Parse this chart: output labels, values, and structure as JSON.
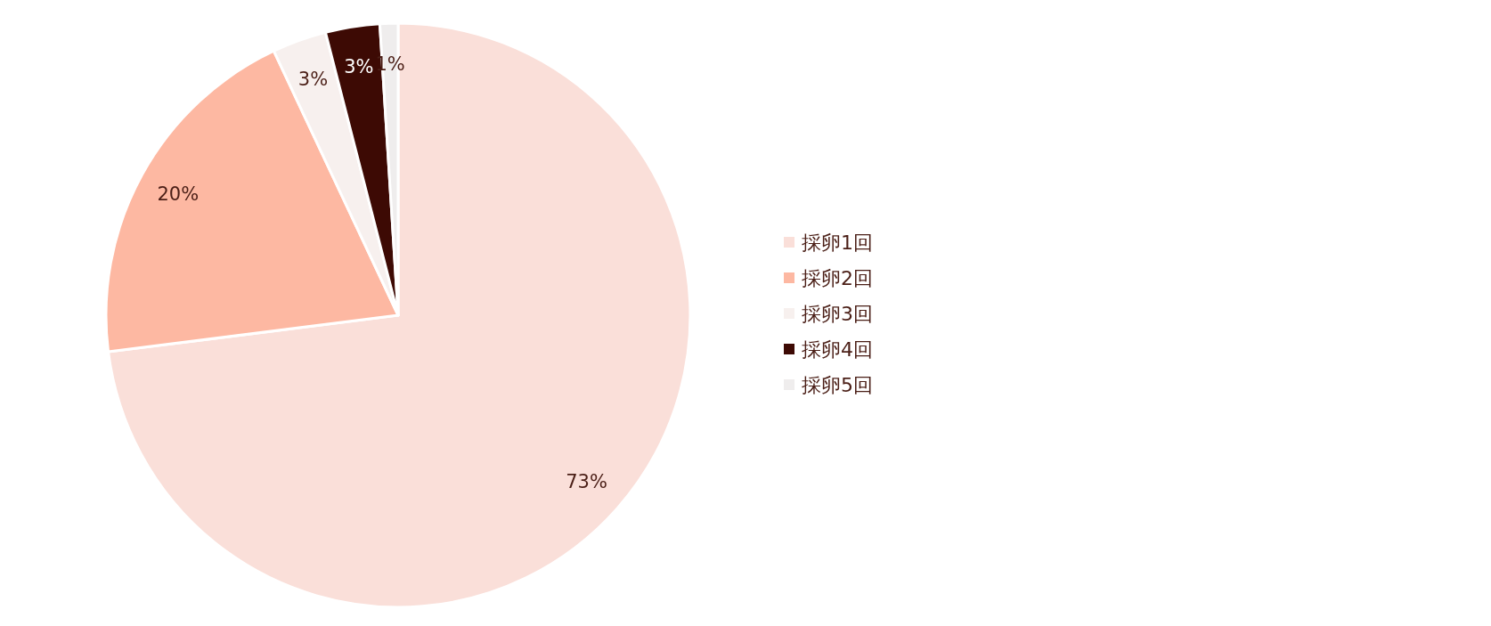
{
  "chart_data": {
    "type": "pie",
    "categories": [
      "採卵1回",
      "採卵2回",
      "採卵3回",
      "採卵4回",
      "採卵5回"
    ],
    "values": [
      73,
      20,
      3,
      3,
      1
    ],
    "value_labels": [
      "73%",
      "20%",
      "3%",
      "3%",
      "1%"
    ],
    "colors": [
      "#fadfd9",
      "#fdb8a2",
      "#f7f0ee",
      "#3d0a04",
      "#efeded"
    ],
    "legend": "right"
  }
}
